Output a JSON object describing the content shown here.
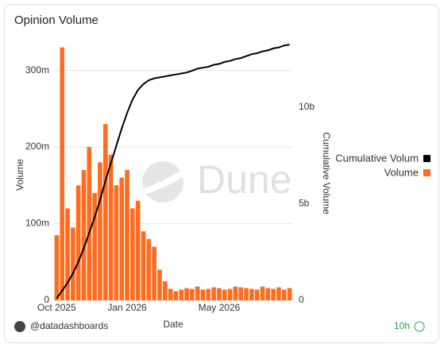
{
  "chart_data": {
    "type": "bar-line",
    "title": "Opinion Volume",
    "x_label": "Date",
    "y_label": "Volume",
    "y2_label": "Cumulative Volume",
    "categories": [
      "Oct 2025",
      null,
      null,
      null,
      null,
      null,
      null,
      null,
      null,
      null,
      null,
      null,
      null,
      "Jan 2026",
      null,
      null,
      null,
      null,
      null,
      null,
      null,
      null,
      null,
      null,
      null,
      null,
      null,
      null,
      null,
      null,
      "May 2026",
      null,
      null,
      null,
      null,
      null,
      null,
      null,
      null,
      null,
      null,
      null,
      null,
      null
    ],
    "series": [
      {
        "name": "Cumulative Volum",
        "color": "#000000",
        "axis": "y2",
        "values": [
          100000000,
          500000000,
          900000000,
          1400000000,
          2000000000,
          2700000000,
          3500000000,
          4300000000,
          5200000000,
          6200000000,
          7100000000,
          8000000000,
          8900000000,
          9700000000,
          10400000000,
          10900000000,
          11200000000,
          11400000000,
          11500000000,
          11550000000,
          11600000000,
          11650000000,
          11700000000,
          11750000000,
          11800000000,
          11900000000,
          12000000000,
          12050000000,
          12100000000,
          12200000000,
          12250000000,
          12350000000,
          12400000000,
          12500000000,
          12550000000,
          12650000000,
          12750000000,
          12800000000,
          12900000000,
          12950000000,
          13050000000,
          13100000000,
          13200000000,
          13250000000
        ]
      },
      {
        "name": "Volume",
        "color": "#ff6b1f",
        "values": [
          85000000,
          330000000,
          120000000,
          95000000,
          150000000,
          170000000,
          200000000,
          140000000,
          180000000,
          230000000,
          190000000,
          150000000,
          160000000,
          170000000,
          120000000,
          130000000,
          90000000,
          80000000,
          70000000,
          40000000,
          25000000,
          15000000,
          12000000,
          14000000,
          16000000,
          15000000,
          18000000,
          14000000,
          15000000,
          17000000,
          16000000,
          14000000,
          15000000,
          18000000,
          17000000,
          16000000,
          15000000,
          14000000,
          18000000,
          16000000,
          15000000,
          17000000,
          14000000,
          16000000
        ]
      }
    ],
    "ylim": [
      0,
      340000000
    ],
    "yticks": [
      0,
      {
        "value": 100000000,
        "label": "100m"
      },
      {
        "value": 200000000,
        "label": "200m"
      },
      {
        "value": 300000000,
        "label": "300m"
      }
    ],
    "y2lim": [
      0,
      13500000000
    ],
    "y2ticks": [
      0,
      {
        "value": 5000000000,
        "label": "5b"
      },
      {
        "value": 10000000000,
        "label": "10b"
      }
    ],
    "grid": true,
    "legend": "right"
  },
  "watermark": "Dune",
  "footer": {
    "user": "@datadashboards",
    "age": "10h"
  }
}
